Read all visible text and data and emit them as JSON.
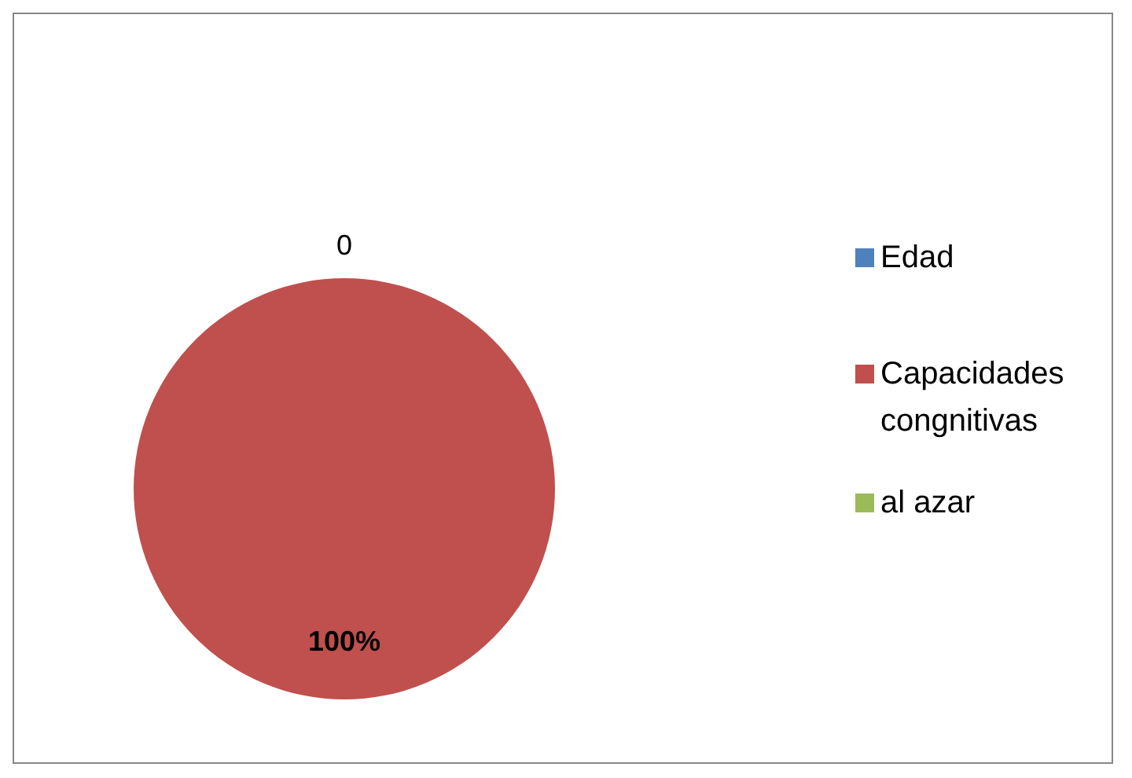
{
  "chart_data": {
    "type": "pie",
    "categories": [
      "Edad",
      "Capacidades congnitivas",
      "al azar"
    ],
    "values": [
      0,
      100,
      0
    ],
    "colors": [
      "#4f81bd",
      "#c0504d",
      "#9bbb59"
    ],
    "value_labels": [
      "0",
      "100%",
      null
    ],
    "legend": "right"
  }
}
